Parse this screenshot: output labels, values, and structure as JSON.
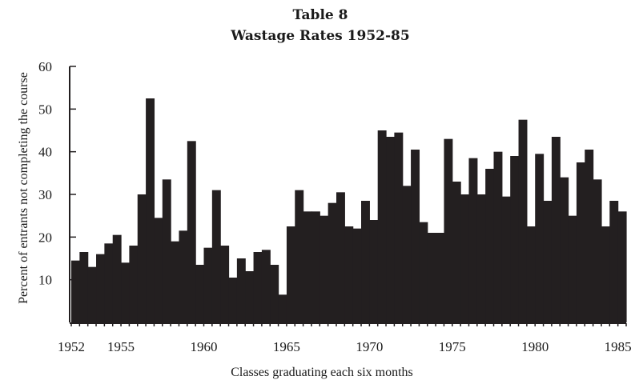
{
  "chart_data": {
    "type": "bar",
    "title": "Table 8",
    "subtitle": "Wastage Rates 1952-85",
    "xlabel": "Classes graduating each six months",
    "ylabel": "Percent of entrants not completing the course",
    "ylim": [
      0,
      60
    ],
    "yticks": [
      10,
      20,
      30,
      40,
      50,
      60
    ],
    "xtick_labels": [
      "1952",
      "1955",
      "1960",
      "1965",
      "1970",
      "1975",
      "1980",
      "1985"
    ],
    "xtick_years": [
      1952,
      1955,
      1960,
      1965,
      1970,
      1975,
      1980,
      1985
    ],
    "x_start": 1952,
    "periods_per_year": 2,
    "grid": false,
    "values": [
      14.5,
      16.5,
      13,
      16,
      18.5,
      20.5,
      14,
      18,
      30,
      52.5,
      24.5,
      33.5,
      19,
      21.5,
      42.5,
      13.5,
      17.5,
      31,
      18,
      10.5,
      15,
      12,
      16.5,
      17,
      13.5,
      6.5,
      22.5,
      31,
      26,
      26,
      25,
      28,
      30.5,
      22.5,
      22,
      28.5,
      24,
      45,
      43.5,
      44.5,
      32,
      40.5,
      23.5,
      21,
      21,
      43,
      33,
      30,
      38.5,
      30,
      36,
      40,
      29.5,
      39,
      47.5,
      22.5,
      39.5,
      28.5,
      43.5,
      34,
      25,
      37.5,
      40.5,
      33.5,
      22.5,
      28.5,
      26
    ]
  }
}
